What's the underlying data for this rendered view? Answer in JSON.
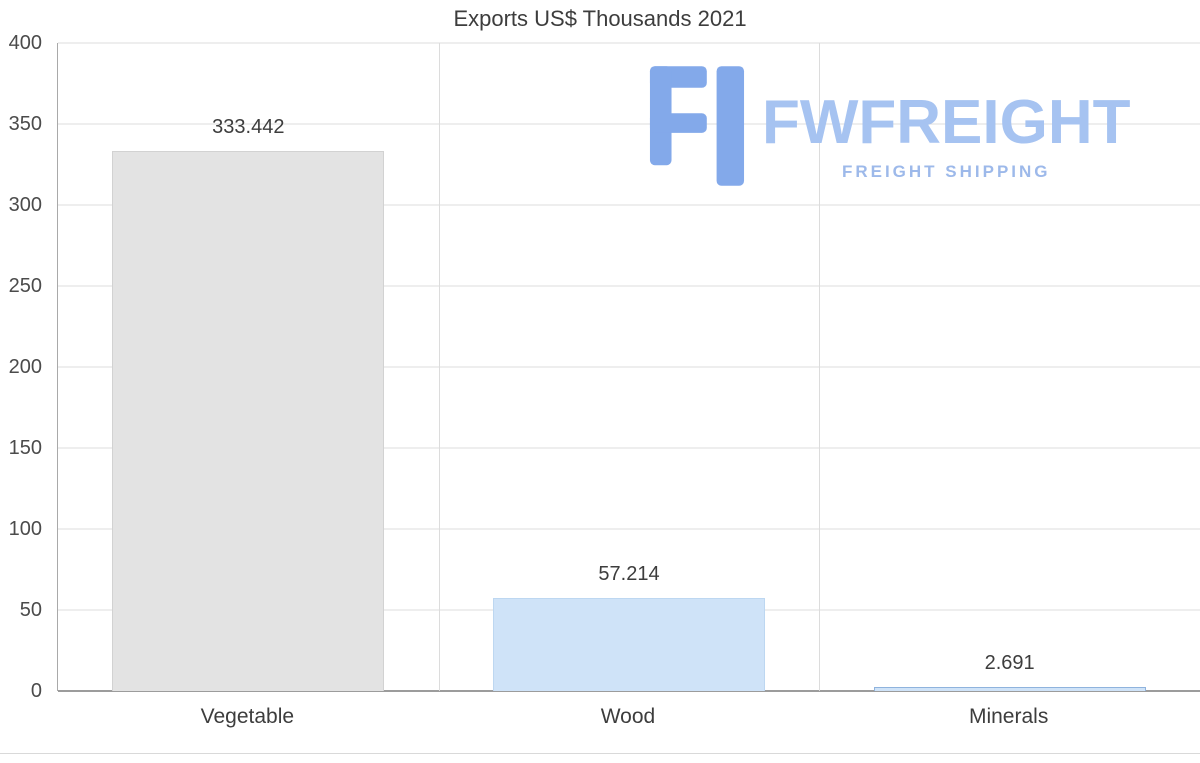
{
  "chart_data": {
    "type": "bar",
    "title": "Exports US$ Thousands 2021",
    "categories": [
      "Vegetable",
      "Wood",
      "Minerals"
    ],
    "values": [
      333.442,
      57.214,
      2.691
    ],
    "value_labels": [
      "333.442",
      "57.214",
      "2.691"
    ],
    "ylim": [
      0,
      400
    ],
    "yticks": [
      0,
      50,
      100,
      150,
      200,
      250,
      300,
      350,
      400
    ],
    "grid": "horizontal lines at every 50, vertical separators between categories",
    "legend": "none",
    "bar_colors": [
      "#e3e3e3",
      "#cfe3f8",
      "#cfe3f8"
    ],
    "bar_borders": [
      "#d2d2d2",
      "#bdd7f1",
      "#8fb3dd"
    ]
  },
  "watermark": {
    "name": "FWFREIGHT",
    "subtitle": "FREIGHT SHIPPING",
    "color_main": "#a6c3f1",
    "color_subtitle": "#9db9ea",
    "color_glyph": "#83a9ea"
  }
}
